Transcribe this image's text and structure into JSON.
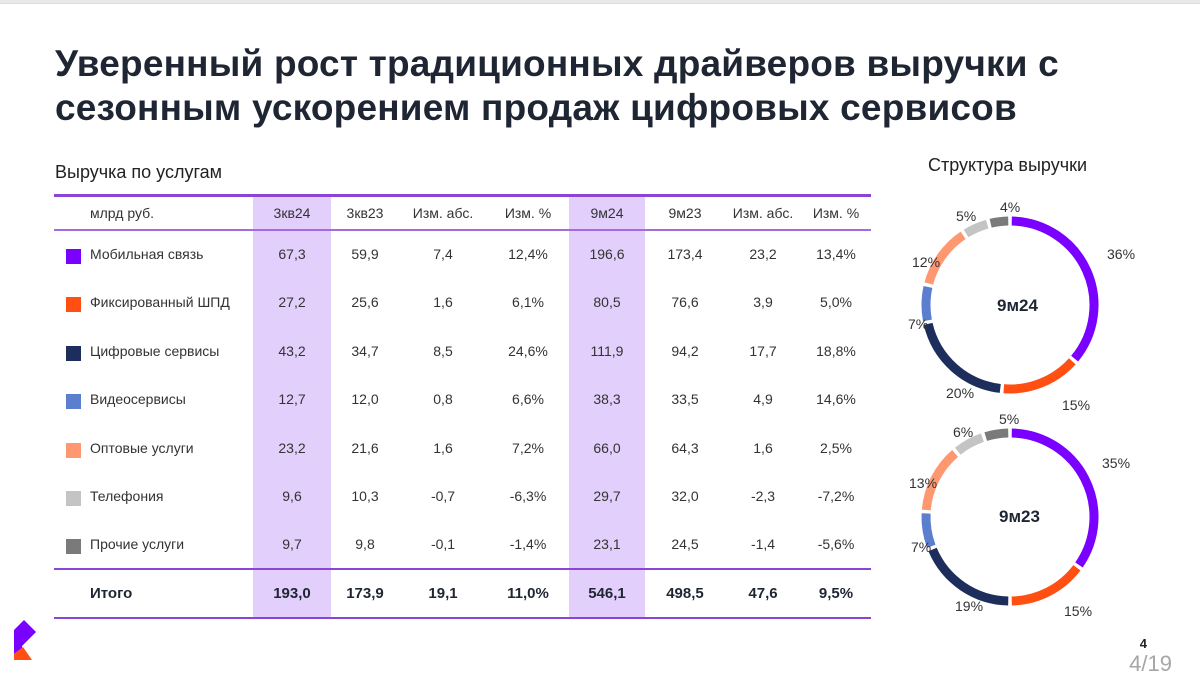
{
  "slide": {
    "title": "Уверенный рост традиционных драйверов выручки с сезонным ускорением продаж цифровых сервисов",
    "page_number": "4",
    "page_counter": "4/19"
  },
  "table": {
    "section_label": "Выручка по услугам",
    "headers": [
      "млрд руб.",
      "3кв24",
      "3кв23",
      "Изм. абс.",
      "Изм. %",
      "9м24",
      "9м23",
      "Изм. абс.",
      "Изм. %"
    ],
    "rows": [
      {
        "name": "Мобильная связь",
        "color": "#7a00ff",
        "values": [
          "67,3",
          "59,9",
          "7,4",
          "12,4%",
          "196,6",
          "173,4",
          "23,2",
          "13,4%"
        ]
      },
      {
        "name": "Фиксированный ШПД",
        "color": "#ff4f12",
        "values": [
          "27,2",
          "25,6",
          "1,6",
          "6,1%",
          "80,5",
          "76,6",
          "3,9",
          "5,0%"
        ]
      },
      {
        "name": "Цифровые сервисы",
        "color": "#1e2e5c",
        "values": [
          "43,2",
          "34,7",
          "8,5",
          "24,6%",
          "111,9",
          "94,2",
          "17,7",
          "18,8%"
        ]
      },
      {
        "name": "Видеосервисы",
        "color": "#5b7fce",
        "values": [
          "12,7",
          "12,0",
          "0,8",
          "6,6%",
          "38,3",
          "33,5",
          "4,9",
          "14,6%"
        ]
      },
      {
        "name": "Оптовые услуги",
        "color": "#ff9870",
        "values": [
          "23,2",
          "21,6",
          "1,6",
          "7,2%",
          "66,0",
          "64,3",
          "1,6",
          "2,5%"
        ]
      },
      {
        "name": "Телефония",
        "color": "#c4c4c4",
        "values": [
          "9,6",
          "10,3",
          "-0,7",
          "-6,3%",
          "29,7",
          "32,0",
          "-2,3",
          "-7,2%"
        ]
      },
      {
        "name": "Прочие услуги",
        "color": "#7a7a7a",
        "values": [
          "9,7",
          "9,8",
          "-0,1",
          "-1,4%",
          "23,1",
          "24,5",
          "-1,4",
          "-5,6%"
        ]
      }
    ],
    "total": {
      "name": "Итого",
      "values": [
        "193,0",
        "173,9",
        "19,1",
        "11,0%",
        "546,1",
        "498,5",
        "47,6",
        "9,5%"
      ]
    },
    "highlight_color": "#e3cffc",
    "rule_color": "#8a45d6"
  },
  "donuts": {
    "title": "Структура выручки",
    "charts": [
      {
        "center": "9м24",
        "labels": [
          "36%",
          "15%",
          "20%",
          "7%",
          "12%",
          "5%",
          "4%"
        ]
      },
      {
        "center": "9м23",
        "labels": [
          "35%",
          "15%",
          "19%",
          "7%",
          "13%",
          "6%",
          "5%"
        ]
      }
    ]
  },
  "chart_data": [
    {
      "type": "table",
      "title": "Выручка по услугам",
      "unit": "млрд руб.",
      "columns": [
        "3кв24",
        "3кв23",
        "Изм. абс.",
        "Изм. %",
        "9м24",
        "9м23",
        "Изм. абс.",
        "Изм. %"
      ],
      "rows": [
        {
          "category": "Мобильная связь",
          "values": [
            67.3,
            59.9,
            7.4,
            12.4,
            196.6,
            173.4,
            23.2,
            13.4
          ]
        },
        {
          "category": "Фиксированный ШПД",
          "values": [
            27.2,
            25.6,
            1.6,
            6.1,
            80.5,
            76.6,
            3.9,
            5.0
          ]
        },
        {
          "category": "Цифровые сервисы",
          "values": [
            43.2,
            34.7,
            8.5,
            24.6,
            111.9,
            94.2,
            17.7,
            18.8
          ]
        },
        {
          "category": "Видеосервисы",
          "values": [
            12.7,
            12.0,
            0.8,
            6.6,
            38.3,
            33.5,
            4.9,
            14.6
          ]
        },
        {
          "category": "Оптовые услуги",
          "values": [
            23.2,
            21.6,
            1.6,
            7.2,
            66.0,
            64.3,
            1.6,
            2.5
          ]
        },
        {
          "category": "Телефония",
          "values": [
            9.6,
            10.3,
            -0.7,
            -6.3,
            29.7,
            32.0,
            -2.3,
            -7.2
          ]
        },
        {
          "category": "Прочие услуги",
          "values": [
            9.7,
            9.8,
            -0.1,
            -1.4,
            23.1,
            24.5,
            -1.4,
            -5.6
          ]
        },
        {
          "category": "Итого",
          "values": [
            193.0,
            173.9,
            19.1,
            11.0,
            546.1,
            498.5,
            47.6,
            9.5
          ]
        }
      ],
      "highlighted_columns": [
        "3кв24",
        "9м24"
      ]
    },
    {
      "type": "pie",
      "title": "Структура выручки — 9м24",
      "donut": true,
      "categories": [
        "Мобильная связь",
        "Фиксированный ШПД",
        "Цифровые сервисы",
        "Видеосервисы",
        "Оптовые услуги",
        "Телефония",
        "Прочие услуги"
      ],
      "values": [
        36,
        15,
        20,
        7,
        12,
        5,
        4
      ],
      "colors": [
        "#7a00ff",
        "#ff4f12",
        "#1e2e5c",
        "#5b7fce",
        "#ff9870",
        "#c4c4c4",
        "#7a7a7a"
      ]
    },
    {
      "type": "pie",
      "title": "Структура выручки — 9м23",
      "donut": true,
      "categories": [
        "Мобильная связь",
        "Фиксированный ШПД",
        "Цифровые сервисы",
        "Видеосервисы",
        "Оптовые услуги",
        "Телефония",
        "Прочие услуги"
      ],
      "values": [
        35,
        15,
        19,
        7,
        13,
        6,
        5
      ],
      "colors": [
        "#7a00ff",
        "#ff4f12",
        "#1e2e5c",
        "#5b7fce",
        "#ff9870",
        "#c4c4c4",
        "#7a7a7a"
      ]
    }
  ]
}
